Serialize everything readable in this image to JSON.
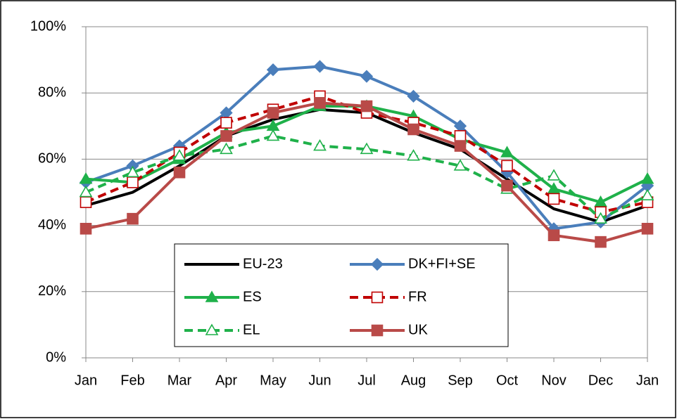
{
  "chart_data": {
    "type": "line",
    "categories": [
      "Jan",
      "Feb",
      "Mar",
      "Apr",
      "May",
      "Jun",
      "Jul",
      "Aug",
      "Sep",
      "Oct",
      "Nov",
      "Dec",
      "Jan"
    ],
    "series": [
      {
        "name": "EU-23",
        "color": "#000000",
        "marker": "none",
        "line_style": "solid",
        "marker_filled": true,
        "values": [
          46,
          50,
          58,
          67,
          72,
          75,
          74,
          68,
          63,
          54,
          45,
          41,
          46
        ]
      },
      {
        "name": "DK+FI+SE",
        "color": "#4a7ebb",
        "marker": "diamond",
        "line_style": "solid",
        "marker_filled": true,
        "values": [
          53,
          58,
          64,
          74,
          87,
          88,
          85,
          79,
          70,
          56,
          39,
          41,
          52
        ]
      },
      {
        "name": "ES",
        "color": "#1fb14a",
        "marker": "triangle",
        "line_style": "solid",
        "marker_filled": true,
        "values": [
          54,
          53,
          60,
          68,
          70,
          76,
          76,
          73,
          66,
          62,
          51,
          47,
          54
        ]
      },
      {
        "name": "FR",
        "color": "#c00000",
        "marker": "square",
        "line_style": "dashed",
        "marker_filled": false,
        "values": [
          47,
          53,
          62,
          71,
          75,
          79,
          74,
          71,
          67,
          58,
          48,
          44,
          47
        ]
      },
      {
        "name": "EL",
        "color": "#1fb14a",
        "marker": "triangle",
        "line_style": "dashed",
        "marker_filled": false,
        "values": [
          50,
          56,
          61,
          63,
          67,
          64,
          63,
          61,
          58,
          51,
          55,
          42,
          49
        ]
      },
      {
        "name": "UK",
        "color": "#b94a48",
        "marker": "square",
        "line_style": "solid",
        "marker_filled": true,
        "values": [
          39,
          42,
          56,
          67,
          74,
          77,
          76,
          69,
          64,
          52,
          37,
          35,
          39
        ]
      }
    ],
    "ylim": [
      0,
      100
    ],
    "yticks": [
      {
        "value": 0,
        "label": "0%"
      },
      {
        "value": 20,
        "label": "20%"
      },
      {
        "value": 40,
        "label": "40%"
      },
      {
        "value": 60,
        "label": "60%"
      },
      {
        "value": 80,
        "label": "80%"
      },
      {
        "value": 100,
        "label": "100%"
      }
    ],
    "grid": true,
    "legend": "inside-bottom"
  }
}
